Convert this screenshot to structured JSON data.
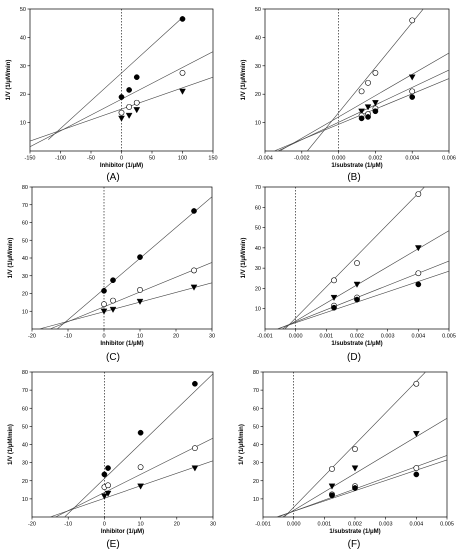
{
  "panel_labels": [
    "(A)",
    "(B)",
    "(C)",
    "(D)",
    "(E)",
    "(F)"
  ],
  "colors": {
    "axis": "#000000",
    "line": "#444444",
    "dashed": "#000000",
    "marker_fill": "#000000",
    "marker_open": "#ffffff"
  },
  "chart_data": [
    {
      "id": "A",
      "type": "scatter",
      "label": "(A)",
      "xlabel": "Inhibitor (1/μM)",
      "ylabel": "1/V (1/μM/min)",
      "xlim": [
        -150,
        150
      ],
      "ylim": [
        0,
        50
      ],
      "xticks": [
        -150,
        -100,
        -50,
        0,
        50,
        100,
        150
      ],
      "yticks": [
        10,
        20,
        30,
        40,
        50
      ],
      "series": [
        {
          "marker": "filled-circle",
          "x": [
            0,
            12.5,
            25,
            100
          ],
          "y": [
            19,
            21.5,
            26,
            46.5
          ]
        },
        {
          "marker": "open-circle",
          "x": [
            0,
            12.5,
            25,
            100
          ],
          "y": [
            13.5,
            15.5,
            17,
            27.5
          ]
        },
        {
          "marker": "filled-triangle",
          "x": [
            0,
            12.5,
            25,
            100
          ],
          "y": [
            11.5,
            12.5,
            14.5,
            21
          ]
        }
      ],
      "lines": [
        {
          "x1": -120,
          "y1": 4,
          "x2": 100,
          "y2": 47
        },
        {
          "x1": -150,
          "y1": 1.5,
          "x2": 150,
          "y2": 35
        },
        {
          "x1": -150,
          "y1": 3.5,
          "x2": 150,
          "y2": 26
        }
      ]
    },
    {
      "id": "B",
      "type": "scatter",
      "label": "(B)",
      "xlabel": "1/substrate (1/μM)",
      "ylabel": "1/V (1/μM/min)",
      "xlim": [
        -0.004,
        0.006
      ],
      "ylim": [
        0,
        50
      ],
      "xticks": [
        "-0.004",
        "-0.002",
        "0.000",
        "0.002",
        "0.004",
        "0.006"
      ],
      "xtick_values": [
        -0.004,
        -0.002,
        0,
        0.002,
        0.004,
        0.006
      ],
      "yticks": [
        10,
        20,
        30,
        40,
        50
      ],
      "series": [
        {
          "marker": "open-circle",
          "x": [
            0.00125,
            0.0016,
            0.002,
            0.004
          ],
          "y": [
            21,
            24,
            27.5,
            46
          ]
        },
        {
          "marker": "filled-triangle",
          "x": [
            0.00125,
            0.0016,
            0.002,
            0.004
          ],
          "y": [
            14,
            15.5,
            17,
            26
          ]
        },
        {
          "marker": "open-circle",
          "x": [
            0.00125,
            0.0016,
            0.002,
            0.004
          ],
          "y": [
            12.5,
            13,
            15,
            21
          ]
        },
        {
          "marker": "filled-circle",
          "x": [
            0.00125,
            0.0016,
            0.002,
            0.004
          ],
          "y": [
            11.5,
            12,
            14,
            19
          ]
        }
      ],
      "lines": [
        {
          "x1": -0.0017,
          "y1": 0,
          "x2": 0.0046,
          "y2": 50
        },
        {
          "x1": -0.0032,
          "y1": 0,
          "x2": 0.006,
          "y2": 34.5
        },
        {
          "x1": -0.0033,
          "y1": 0,
          "x2": 0.006,
          "y2": 28.5
        },
        {
          "x1": -0.0035,
          "y1": 0,
          "x2": 0.006,
          "y2": 25.5
        }
      ]
    },
    {
      "id": "C",
      "type": "scatter",
      "label": "(C)",
      "xlabel": "Inhibitor (1/μM)",
      "ylabel": "1/V (1/μM/min)",
      "xlim": [
        -20,
        30
      ],
      "ylim": [
        0,
        80
      ],
      "xticks": [
        -20,
        -10,
        0,
        10,
        20,
        30
      ],
      "yticks": [
        10,
        20,
        30,
        40,
        50,
        60,
        70,
        80
      ],
      "series": [
        {
          "marker": "filled-circle",
          "x": [
            0,
            2.5,
            10,
            25
          ],
          "y": [
            21.5,
            27.5,
            40.5,
            66.5
          ]
        },
        {
          "marker": "open-circle",
          "x": [
            0,
            2.5,
            10,
            25
          ],
          "y": [
            14,
            16,
            22,
            33
          ]
        },
        {
          "marker": "filled-triangle",
          "x": [
            0,
            2.5,
            10,
            25
          ],
          "y": [
            10,
            11,
            15.5,
            23.5
          ]
        }
      ],
      "lines": [
        {
          "x1": -13,
          "y1": 0,
          "x2": 30,
          "y2": 74.5
        },
        {
          "x1": -15,
          "y1": 0,
          "x2": 30,
          "y2": 37.5
        },
        {
          "x1": -18,
          "y1": 0,
          "x2": 30,
          "y2": 26
        }
      ]
    },
    {
      "id": "D",
      "type": "scatter",
      "label": "(D)",
      "xlabel": "1/substrate (1/μM)",
      "ylabel": "1/V (1/μM/min)",
      "xlim": [
        -0.001,
        0.005
      ],
      "ylim": [
        0,
        70
      ],
      "xticks": [
        "-0.001",
        "0.000",
        "0.001",
        "0.002",
        "0.003",
        "0.004",
        "0.005"
      ],
      "xtick_values": [
        -0.001,
        0,
        0.001,
        0.002,
        0.003,
        0.004,
        0.005
      ],
      "yticks": [
        10,
        20,
        30,
        40,
        50,
        60,
        70
      ],
      "series": [
        {
          "marker": "open-circle",
          "x": [
            0.00125,
            0.002,
            0.004
          ],
          "y": [
            24,
            32.5,
            66.5
          ]
        },
        {
          "marker": "filled-triangle",
          "x": [
            0.00125,
            0.002,
            0.004
          ],
          "y": [
            15.5,
            22,
            40
          ]
        },
        {
          "marker": "open-circle",
          "x": [
            0.00125,
            0.002,
            0.004
          ],
          "y": [
            11.5,
            15.5,
            27.5
          ]
        },
        {
          "marker": "filled-circle",
          "x": [
            0.00125,
            0.002,
            0.004
          ],
          "y": [
            10.5,
            14.5,
            22
          ]
        }
      ],
      "lines": [
        {
          "x1": -0.001,
          "y1": -10,
          "x2": 0.0042,
          "y2": 70
        },
        {
          "x1": -0.001,
          "y1": -5,
          "x2": 0.005,
          "y2": 48.5
        },
        {
          "x1": -0.001,
          "y1": -2.5,
          "x2": 0.005,
          "y2": 33.5
        },
        {
          "x1": -0.001,
          "y1": -2,
          "x2": 0.005,
          "y2": 28.5
        }
      ]
    },
    {
      "id": "E",
      "type": "scatter",
      "label": "(E)",
      "xlabel": "Inhibitor (1/μM)",
      "ylabel": "1/V (1/μM/min)",
      "xlim": [
        -20,
        30
      ],
      "ylim": [
        0,
        80
      ],
      "xticks": [
        -20,
        -10,
        0,
        10,
        20,
        30
      ],
      "yticks": [
        10,
        20,
        30,
        40,
        50,
        60,
        70,
        80
      ],
      "series": [
        {
          "marker": "filled-circle",
          "x": [
            0,
            1,
            10,
            25
          ],
          "y": [
            23.5,
            27,
            46.5,
            73.5
          ]
        },
        {
          "marker": "open-circle",
          "x": [
            0,
            1,
            10,
            25
          ],
          "y": [
            16.5,
            17.5,
            27.5,
            38
          ]
        },
        {
          "marker": "filled-triangle",
          "x": [
            0,
            1,
            10,
            25
          ],
          "y": [
            11.5,
            13,
            17,
            27
          ]
        }
      ],
      "lines": [
        {
          "x1": -11,
          "y1": 0,
          "x2": 30,
          "y2": 79
        },
        {
          "x1": -13.5,
          "y1": 0,
          "x2": 30,
          "y2": 43.5
        },
        {
          "x1": -15,
          "y1": 0,
          "x2": 30,
          "y2": 31
        }
      ]
    },
    {
      "id": "F",
      "type": "scatter",
      "label": "(F)",
      "xlabel": "1/substrate (1/μM)",
      "ylabel": "1/V (1/μM/min)",
      "xlim": [
        -0.001,
        0.005
      ],
      "ylim": [
        0,
        80
      ],
      "xticks": [
        "-0.001",
        "0.000",
        "0.001",
        "0.002",
        "0.003",
        "0.004",
        "0.005"
      ],
      "xtick_values": [
        -0.001,
        0,
        0.001,
        0.002,
        0.003,
        0.004,
        0.005
      ],
      "yticks": [
        10,
        20,
        30,
        40,
        50,
        60,
        70,
        80
      ],
      "series": [
        {
          "marker": "open-circle",
          "x": [
            0.00125,
            0.002,
            0.004
          ],
          "y": [
            26.5,
            37.5,
            73.5
          ]
        },
        {
          "marker": "filled-triangle",
          "x": [
            0.00125,
            0.002,
            0.004
          ],
          "y": [
            17,
            27,
            46
          ]
        },
        {
          "marker": "open-circle",
          "x": [
            0.00125,
            0.002,
            0.004
          ],
          "y": [
            12.5,
            17,
            27
          ]
        },
        {
          "marker": "filled-circle",
          "x": [
            0.00125,
            0.002,
            0.004
          ],
          "y": [
            12,
            16,
            23.5
          ]
        }
      ],
      "lines": [
        {
          "x1": -0.001,
          "y1": -12,
          "x2": 0.0043,
          "y2": 80
        },
        {
          "x1": -0.001,
          "y1": -6.5,
          "x2": 0.005,
          "y2": 54.5
        },
        {
          "x1": -0.001,
          "y1": -3,
          "x2": 0.005,
          "y2": 34
        },
        {
          "x1": -0.001,
          "y1": -2.5,
          "x2": 0.005,
          "y2": 31.5
        }
      ]
    }
  ]
}
